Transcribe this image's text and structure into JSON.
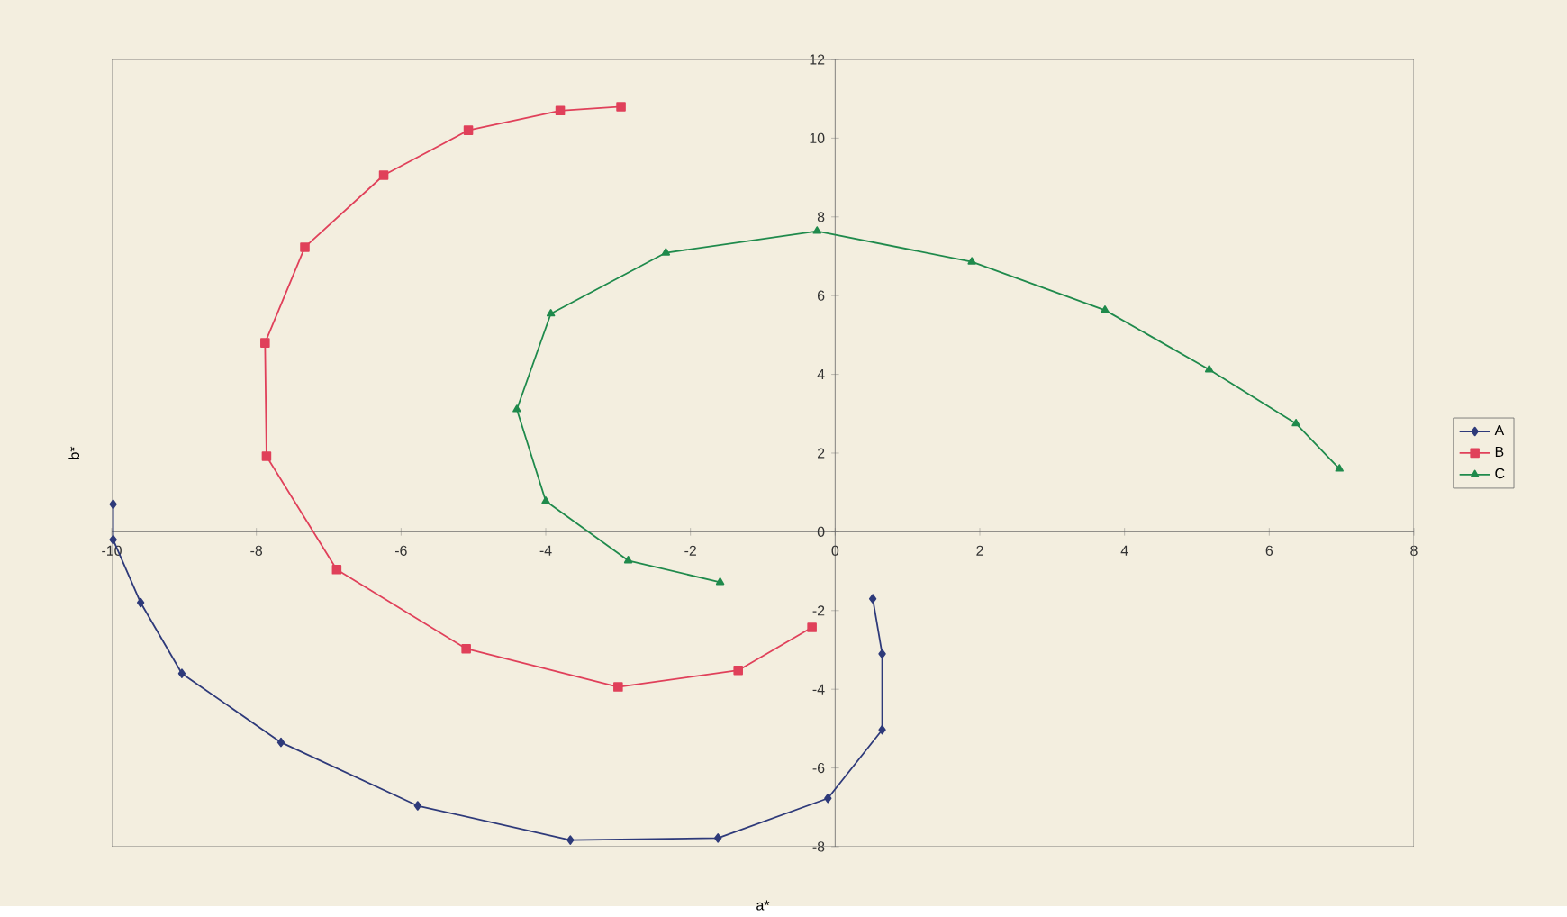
{
  "chart_data": {
    "type": "line",
    "xlabel": "a*",
    "ylabel": "b*",
    "xlim": [
      -10,
      8
    ],
    "ylim": [
      -8,
      12
    ],
    "xticks": [
      -10,
      -8,
      -6,
      -4,
      -2,
      0,
      2,
      4,
      6,
      8
    ],
    "yticks": [
      -8,
      -6,
      -4,
      -2,
      0,
      2,
      4,
      6,
      8,
      10,
      12
    ],
    "grid": false,
    "legend": "right",
    "series": [
      {
        "name": "A",
        "color": "#2e3a7a",
        "marker": "diamond",
        "x": [
          -9.98,
          -9.98,
          -9.6,
          -9.03,
          -7.66,
          -5.77,
          -3.66,
          -1.62,
          -0.1,
          0.65,
          0.65,
          0.52
        ],
        "values": [
          0.7,
          -0.2,
          -1.8,
          -3.6,
          -5.35,
          -6.96,
          -7.83,
          -7.78,
          -6.77,
          -5.03,
          -3.1,
          -1.7
        ]
      },
      {
        "name": "B",
        "color": "#e0405a",
        "marker": "square",
        "x": [
          -2.96,
          -3.8,
          -5.07,
          -6.24,
          -7.33,
          -7.88,
          -7.86,
          -6.89,
          -5.1,
          -3.0,
          -1.34,
          -0.32
        ],
        "values": [
          10.8,
          10.7,
          10.2,
          9.06,
          7.23,
          4.8,
          1.92,
          -0.96,
          -2.97,
          -3.94,
          -3.52,
          -2.43
        ]
      },
      {
        "name": "C",
        "color": "#1f8a4c",
        "marker": "triangle",
        "x": [
          -1.59,
          -2.86,
          -4.0,
          -4.4,
          -3.93,
          -2.34,
          -0.25,
          1.89,
          3.73,
          5.17,
          6.37,
          6.97
        ],
        "values": [
          -1.28,
          -0.73,
          0.78,
          3.11,
          5.54,
          7.09,
          7.64,
          6.86,
          5.63,
          4.12,
          2.75,
          1.6
        ]
      }
    ]
  }
}
